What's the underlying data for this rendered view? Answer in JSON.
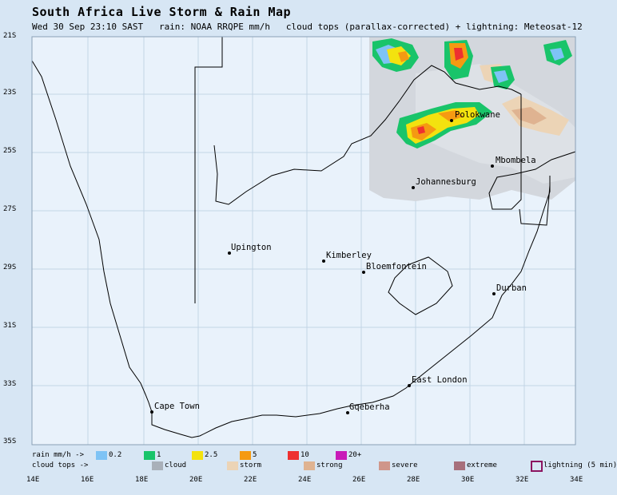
{
  "header": {
    "title": "South Africa Live Storm & Rain Map",
    "subtitle": "Wed 30 Sep 23:10 SAST   rain: NOAA RRQPE mm/h   cloud tops (parallax-corrected) + lightning: Meteosat-12"
  },
  "axes": {
    "latitudes": [
      "21S",
      "23S",
      "25S",
      "27S",
      "29S",
      "31S",
      "33S",
      "35S"
    ],
    "longitudes": [
      "14E",
      "16E",
      "18E",
      "20E",
      "22E",
      "24E",
      "26E",
      "28E",
      "30E",
      "32E",
      "34E"
    ]
  },
  "cities": [
    {
      "name": "Polokwane"
    },
    {
      "name": "Mbombela"
    },
    {
      "name": "Johannesburg"
    },
    {
      "name": "Upington"
    },
    {
      "name": "Kimberley"
    },
    {
      "name": "Bloemfontein"
    },
    {
      "name": "Durban"
    },
    {
      "name": "East London"
    },
    {
      "name": "Cape Town"
    },
    {
      "name": "Gqeberha"
    }
  ],
  "legend": {
    "rain_label": "rain mm/h ->",
    "rain_items": [
      {
        "label": "0.2",
        "color": "#7ec3f5"
      },
      {
        "label": "1",
        "color": "#19c46a"
      },
      {
        "label": "2.5",
        "color": "#f3e20f"
      },
      {
        "label": "5",
        "color": "#f59a12"
      },
      {
        "label": "10",
        "color": "#ee3030"
      },
      {
        "label": "20+",
        "color": "#c81ab8"
      }
    ],
    "cloud_label": "cloud tops ->",
    "cloud_items": [
      {
        "label": "cloud",
        "color": "#a9b0b9"
      },
      {
        "label": "storm",
        "color": "#ecd4b6"
      },
      {
        "label": "strong",
        "color": "#dfb391"
      },
      {
        "label": "severe",
        "color": "#cf968a"
      },
      {
        "label": "extreme",
        "color": "#a7707c"
      }
    ],
    "lightning_label": "lightning (5 min)",
    "lightning_color": "#8b1460"
  }
}
